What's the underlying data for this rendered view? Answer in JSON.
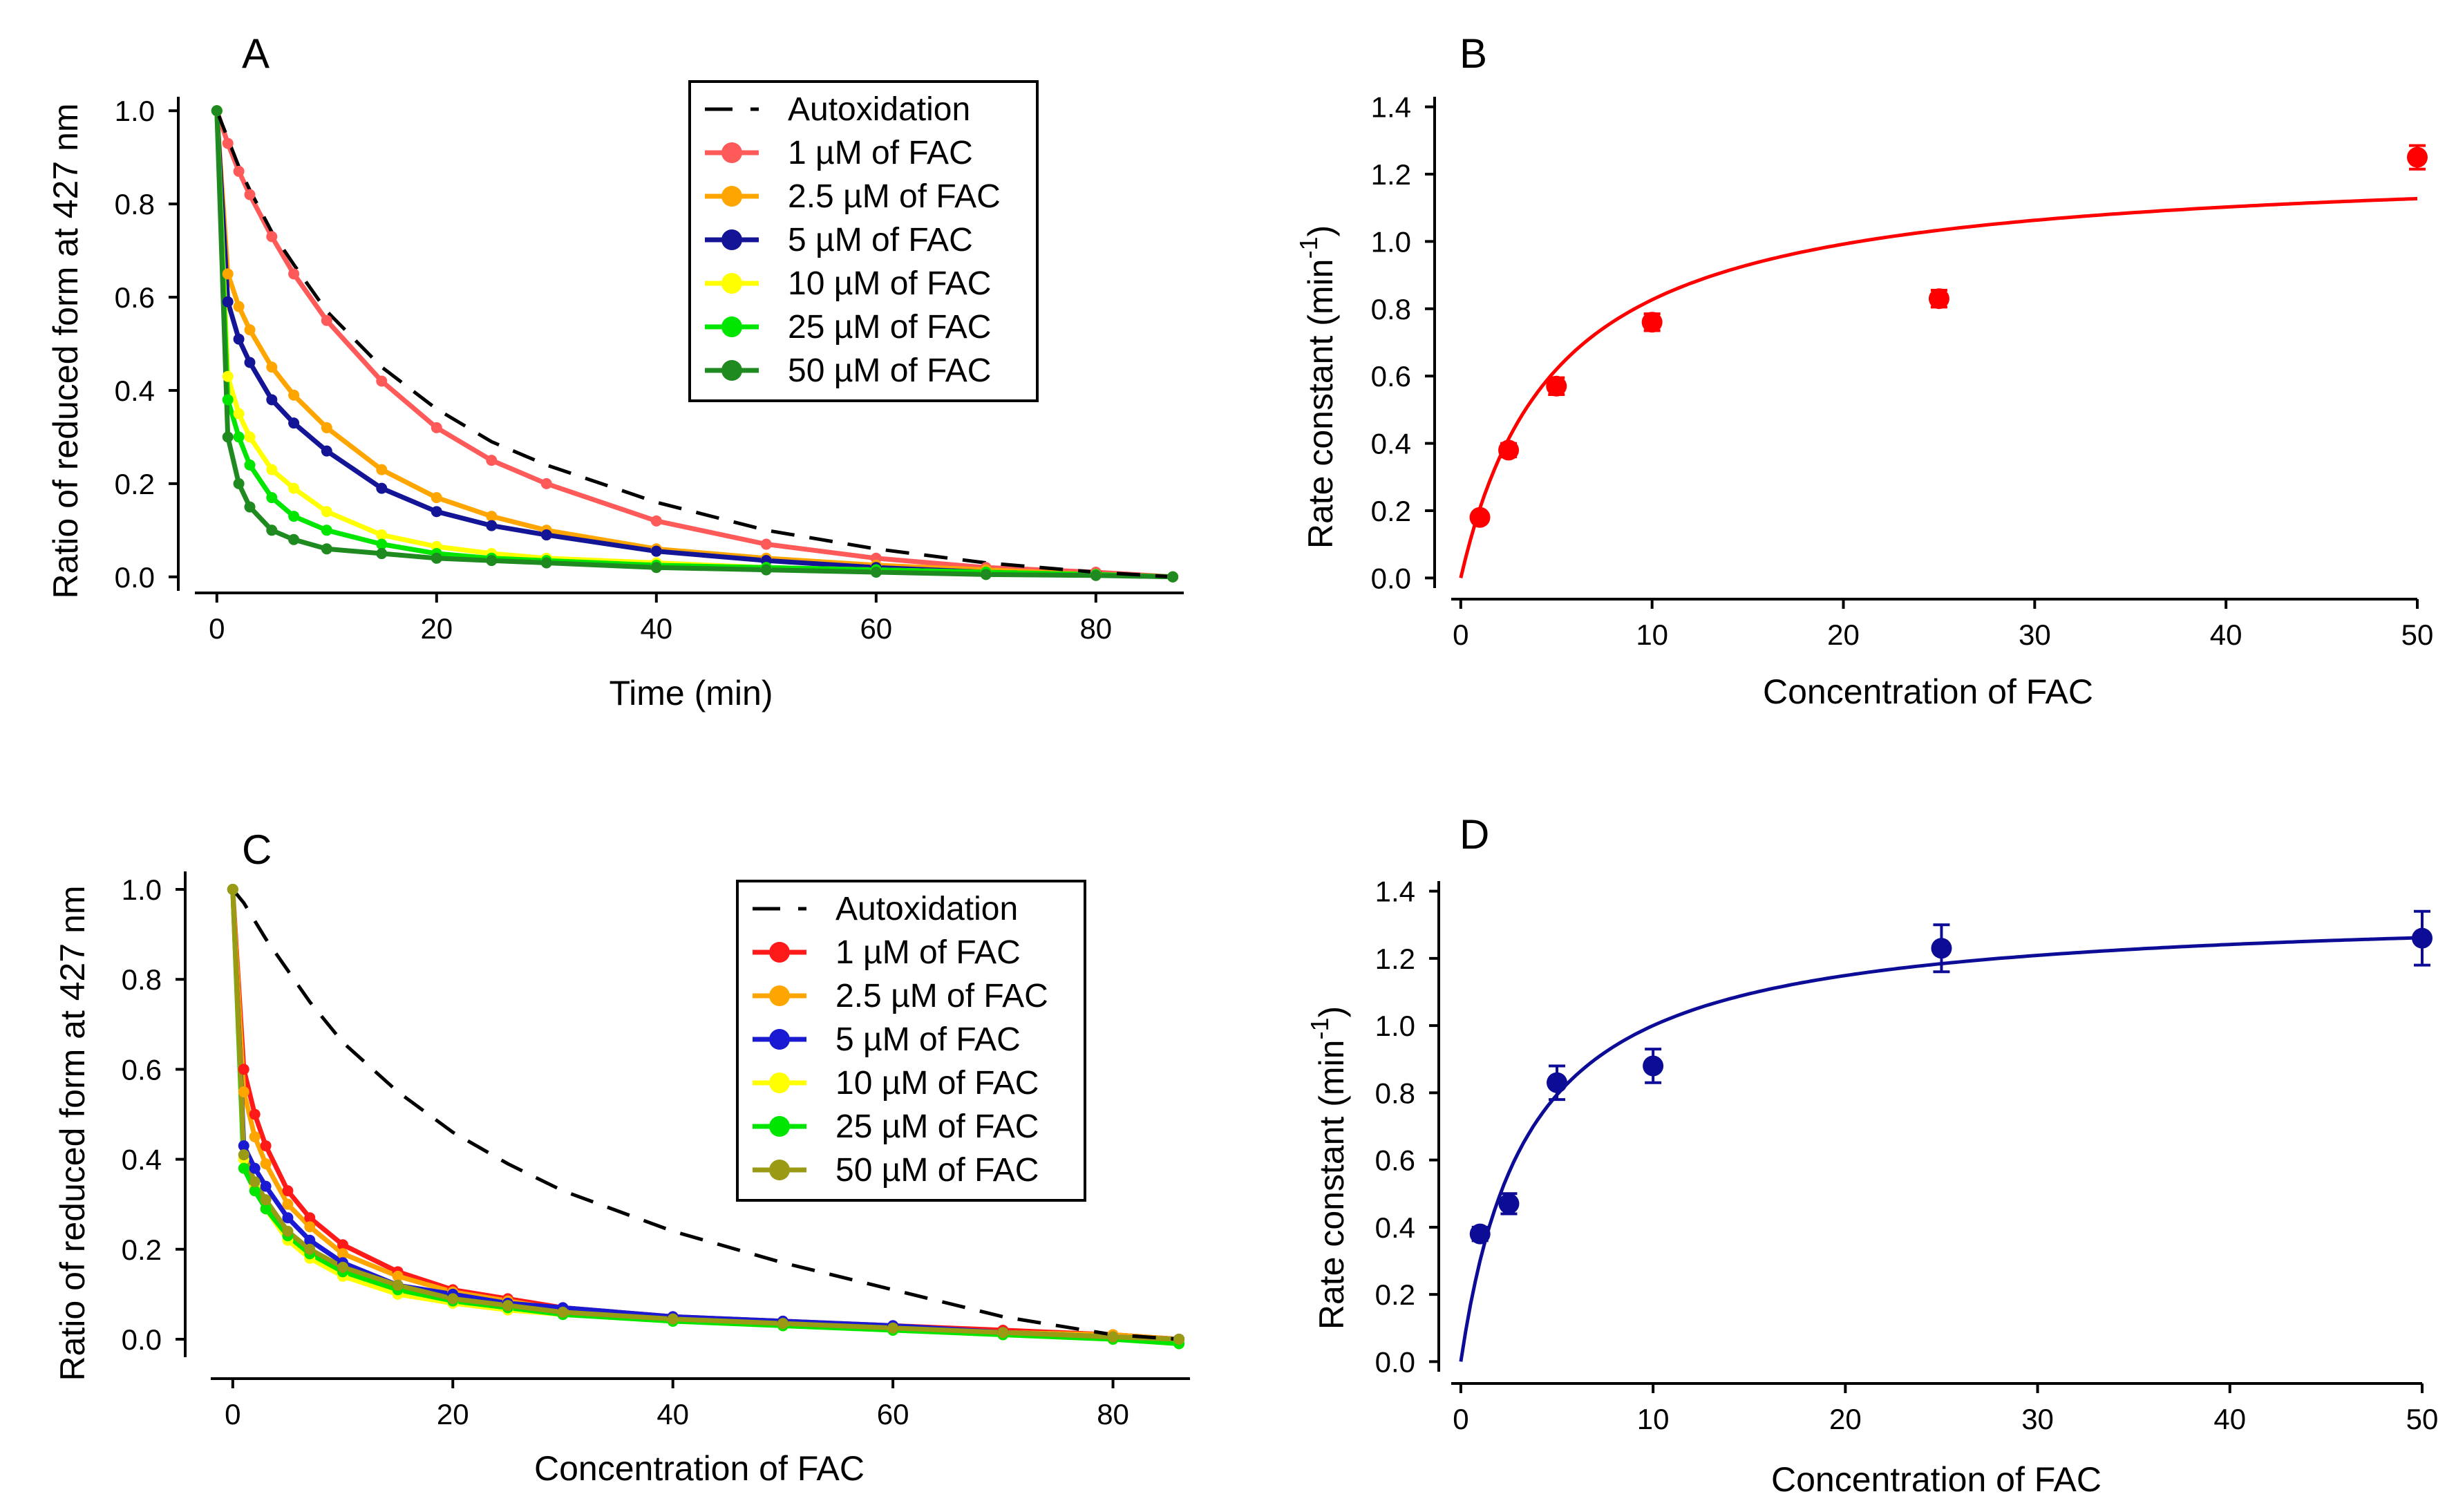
{
  "colors": {
    "auto": "#000000",
    "A": [
      "#ff5a5a",
      "#ffa500",
      "#141496",
      "#ffff00",
      "#00e600",
      "#1f8a1f"
    ],
    "C": [
      "#ff1a1a",
      "#ffa500",
      "#1a1ad2",
      "#ffff00",
      "#00e600",
      "#9a9a14"
    ],
    "B": "#ff0000",
    "D": "#0c0c96"
  },
  "chart_data": [
    {
      "id": "A",
      "type": "line",
      "panel_label": "A",
      "xlabel": "Time (min)",
      "ylabel": "Ratio of reduced form at 427 nm",
      "xlim": [
        -2,
        88
      ],
      "ylim": [
        -0.03,
        1.03
      ],
      "xticks": [
        0,
        20,
        40,
        60,
        80
      ],
      "xtick_labels": [
        "0",
        "20",
        "40",
        "60",
        "80"
      ],
      "yticks": [
        0,
        0.2,
        0.4,
        0.6,
        0.8,
        1.0
      ],
      "ytick_labels": [
        "0.0",
        "0.2",
        "0.4",
        "0.6",
        "0.8",
        "1.0"
      ],
      "x": [
        0,
        1,
        2,
        3,
        5,
        7,
        10,
        15,
        20,
        25,
        30,
        40,
        50,
        60,
        70,
        80,
        87
      ],
      "autoxidation": {
        "name": "Autoxidation",
        "values": [
          1.0,
          0.94,
          0.88,
          0.83,
          0.74,
          0.67,
          0.57,
          0.45,
          0.36,
          0.29,
          0.24,
          0.16,
          0.1,
          0.06,
          0.03,
          0.01,
          0.0
        ]
      },
      "series": [
        {
          "name": "1 µM of FAC",
          "values": [
            1.0,
            0.93,
            0.87,
            0.82,
            0.73,
            0.65,
            0.55,
            0.42,
            0.32,
            0.25,
            0.2,
            0.12,
            0.07,
            0.04,
            0.02,
            0.01,
            0.0
          ]
        },
        {
          "name": "2.5 µM of FAC",
          "values": [
            1.0,
            0.65,
            0.58,
            0.53,
            0.45,
            0.39,
            0.32,
            0.23,
            0.17,
            0.13,
            0.1,
            0.06,
            0.04,
            0.025,
            0.015,
            0.005,
            0.0
          ]
        },
        {
          "name": "5 µM of FAC",
          "values": [
            1.0,
            0.59,
            0.51,
            0.46,
            0.38,
            0.33,
            0.27,
            0.19,
            0.14,
            0.11,
            0.09,
            0.055,
            0.035,
            0.02,
            0.01,
            0.005,
            0.0
          ]
        },
        {
          "name": "10 µM of FAC",
          "values": [
            1.0,
            0.43,
            0.35,
            0.3,
            0.23,
            0.19,
            0.14,
            0.09,
            0.065,
            0.05,
            0.04,
            0.03,
            0.02,
            0.015,
            0.01,
            0.005,
            0.0
          ]
        },
        {
          "name": "25 µM of FAC",
          "values": [
            1.0,
            0.38,
            0.3,
            0.24,
            0.17,
            0.13,
            0.1,
            0.07,
            0.05,
            0.04,
            0.035,
            0.025,
            0.02,
            0.015,
            0.01,
            0.005,
            0.0
          ]
        },
        {
          "name": "50 µM of FAC",
          "values": [
            1.0,
            0.3,
            0.2,
            0.15,
            0.1,
            0.08,
            0.06,
            0.05,
            0.04,
            0.035,
            0.03,
            0.02,
            0.015,
            0.01,
            0.005,
            0.003,
            0.0
          ]
        }
      ]
    },
    {
      "id": "B",
      "type": "scatter",
      "panel_label": "B",
      "xlabel": "Concentration of FAC",
      "ylabel": "Rate constant (min",
      "ylabel_sup": "-1",
      "ylabel_end": ")",
      "xlim": [
        -0.5,
        50
      ],
      "ylim": [
        -0.03,
        1.43
      ],
      "xticks": [
        0,
        10,
        20,
        30,
        40,
        50
      ],
      "xtick_labels": [
        "0",
        "10",
        "20",
        "30",
        "40",
        "50"
      ],
      "yticks": [
        0,
        0.2,
        0.4,
        0.6,
        0.8,
        1.0,
        1.2,
        1.4
      ],
      "ytick_labels": [
        "0.0",
        "0.2",
        "0.4",
        "0.6",
        "0.8",
        "1.0",
        "1.2",
        "1.4"
      ],
      "x": [
        1,
        2.5,
        5,
        10,
        25,
        50
      ],
      "values": [
        0.18,
        0.38,
        0.57,
        0.76,
        0.83,
        1.25
      ],
      "errors": [
        0.015,
        0.02,
        0.025,
        0.025,
        0.025,
        0.035
      ],
      "fit": {
        "model": "Michaelis-Menten",
        "vmax": 1.24,
        "km": 5.0
      }
    },
    {
      "id": "C",
      "type": "line",
      "panel_label": "C",
      "xlabel": "Concentration of FAC",
      "ylabel": "Ratio of reduced form at 427 nm",
      "xlim": [
        -2,
        87
      ],
      "ylim": [
        -0.04,
        1.04
      ],
      "xticks": [
        0,
        20,
        40,
        60,
        80
      ],
      "xtick_labels": [
        "0",
        "20",
        "40",
        "60",
        "80"
      ],
      "yticks": [
        0,
        0.2,
        0.4,
        0.6,
        0.8,
        1.0
      ],
      "ytick_labels": [
        "0.0",
        "0.2",
        "0.4",
        "0.6",
        "0.8",
        "1.0"
      ],
      "x": [
        0,
        1,
        2,
        3,
        5,
        7,
        10,
        15,
        20,
        25,
        30,
        40,
        50,
        60,
        70,
        80,
        86
      ],
      "autoxidation": {
        "name": "Autoxidation",
        "values": [
          1.0,
          0.97,
          0.93,
          0.89,
          0.82,
          0.75,
          0.66,
          0.55,
          0.46,
          0.39,
          0.33,
          0.24,
          0.17,
          0.11,
          0.05,
          0.01,
          0.0
        ]
      },
      "series": [
        {
          "name": "1 µM of FAC",
          "values": [
            1.0,
            0.6,
            0.5,
            0.43,
            0.33,
            0.27,
            0.21,
            0.15,
            0.11,
            0.09,
            0.07,
            0.05,
            0.04,
            0.03,
            0.02,
            0.01,
            0.0
          ]
        },
        {
          "name": "2.5 µM of FAC",
          "values": [
            1.0,
            0.55,
            0.45,
            0.39,
            0.3,
            0.25,
            0.19,
            0.14,
            0.105,
            0.085,
            0.065,
            0.045,
            0.035,
            0.025,
            0.015,
            0.01,
            0.0
          ]
        },
        {
          "name": "5 µM of FAC",
          "values": [
            1.0,
            0.43,
            0.38,
            0.34,
            0.27,
            0.22,
            0.17,
            0.12,
            0.1,
            0.08,
            0.07,
            0.05,
            0.04,
            0.03,
            0.015,
            0.005,
            0.0
          ]
        },
        {
          "name": "10 µM of FAC",
          "values": [
            1.0,
            0.4,
            0.34,
            0.29,
            0.22,
            0.18,
            0.14,
            0.1,
            0.08,
            0.065,
            0.055,
            0.04,
            0.03,
            0.02,
            0.01,
            0.0,
            -0.01
          ]
        },
        {
          "name": "25 µM of FAC",
          "values": [
            1.0,
            0.38,
            0.33,
            0.29,
            0.23,
            0.19,
            0.15,
            0.11,
            0.085,
            0.07,
            0.055,
            0.04,
            0.03,
            0.02,
            0.01,
            0.0,
            -0.01
          ]
        },
        {
          "name": "50 µM of FAC",
          "values": [
            1.0,
            0.41,
            0.35,
            0.31,
            0.24,
            0.2,
            0.16,
            0.12,
            0.09,
            0.075,
            0.06,
            0.045,
            0.035,
            0.025,
            0.015,
            0.005,
            0.0
          ]
        }
      ]
    },
    {
      "id": "D",
      "type": "scatter",
      "panel_label": "D",
      "xlabel": "Concentration of FAC",
      "ylabel": "Rate constant (min",
      "ylabel_sup": "-1",
      "ylabel_end": ")",
      "xlim": [
        -0.5,
        50
      ],
      "ylim": [
        -0.03,
        1.43
      ],
      "xticks": [
        0,
        10,
        20,
        30,
        40,
        50
      ],
      "xtick_labels": [
        "0",
        "10",
        "20",
        "30",
        "40",
        "50"
      ],
      "yticks": [
        0,
        0.2,
        0.4,
        0.6,
        0.8,
        1.0,
        1.2,
        1.4
      ],
      "ytick_labels": [
        "0.0",
        "0.2",
        "0.4",
        "0.6",
        "0.8",
        "1.0",
        "1.2",
        "1.4"
      ],
      "x": [
        1,
        2.5,
        5,
        10,
        25,
        50
      ],
      "values": [
        0.38,
        0.47,
        0.83,
        0.88,
        1.23,
        1.26
      ],
      "errors": [
        0.02,
        0.03,
        0.05,
        0.05,
        0.07,
        0.08
      ],
      "fit": {
        "model": "Michaelis-Menten",
        "vmax": 1.35,
        "km": 3.5
      }
    }
  ]
}
